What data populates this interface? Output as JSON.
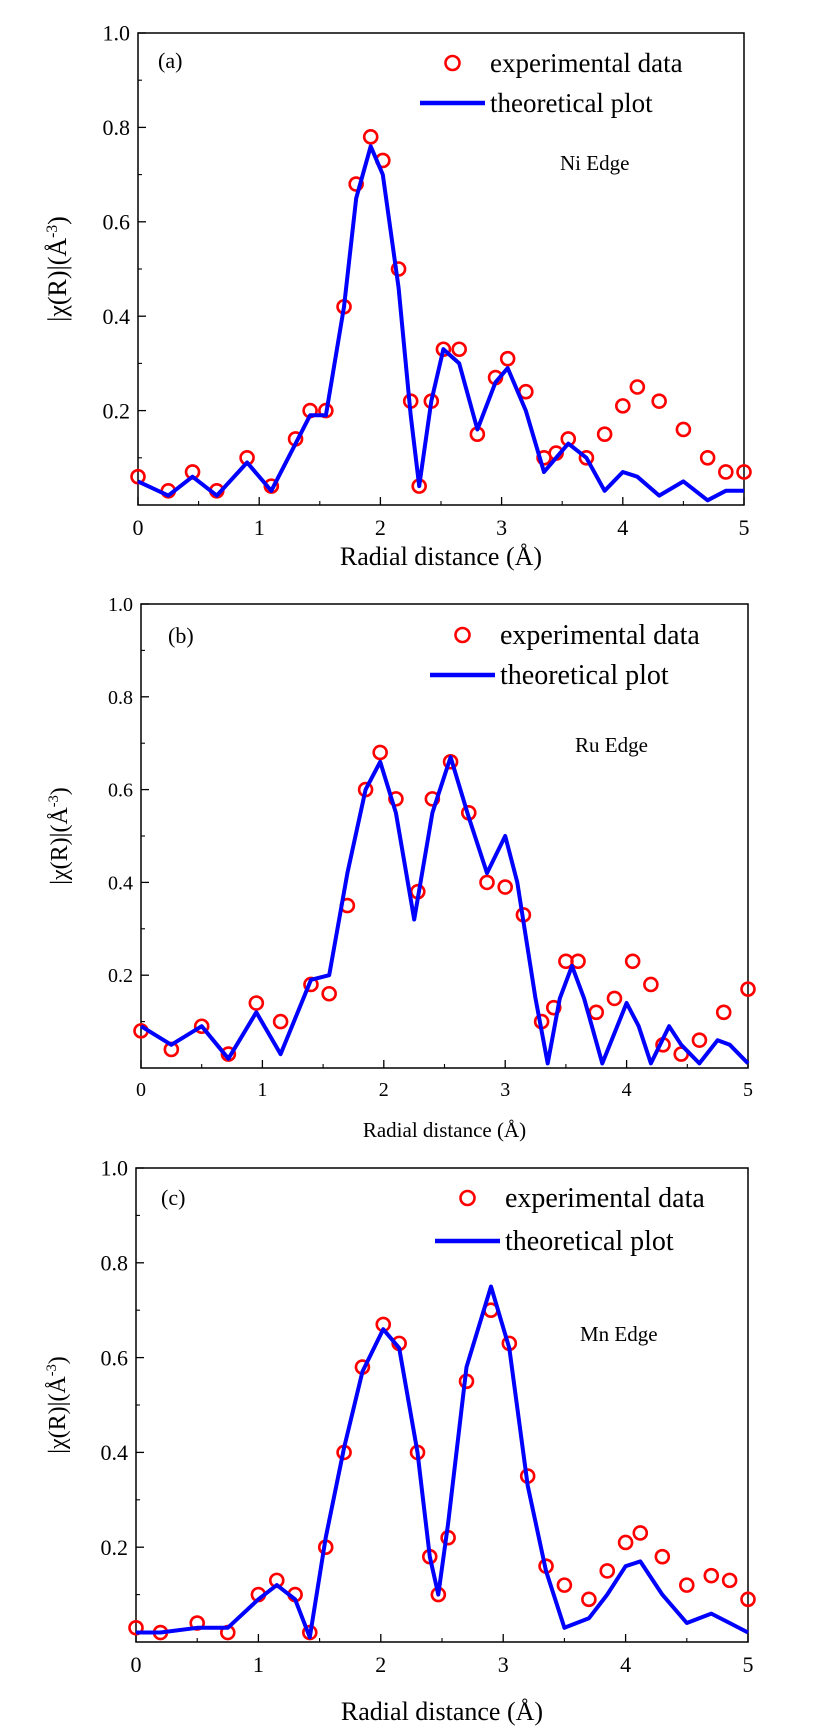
{
  "chart_data": [
    {
      "type": "scatter",
      "panel_label": "(a)",
      "annotation": "Ni Edge",
      "xlabel": "Radial distance (Å)",
      "ylabel": "|χ(R)|(Å",
      "ylabel_sup": "-3",
      "ylabel_close": ")",
      "xlim": [
        0,
        5
      ],
      "ylim": [
        0,
        1.0
      ],
      "xticks": [
        "0",
        "1",
        "2",
        "3",
        "4",
        "5"
      ],
      "yticks": [
        "0.2",
        "0.4",
        "0.6",
        "0.8",
        "1.0"
      ],
      "legend_position": "top-right",
      "series": [
        {
          "name": "experimental data",
          "style": "circles",
          "color": "#ff0000",
          "x": [
            0.0,
            0.25,
            0.45,
            0.65,
            0.9,
            1.1,
            1.3,
            1.42,
            1.55,
            1.7,
            1.8,
            1.92,
            2.02,
            2.15,
            2.25,
            2.32,
            2.42,
            2.52,
            2.65,
            2.8,
            2.95,
            3.05,
            3.2,
            3.35,
            3.45,
            3.55,
            3.7,
            3.85,
            4.0,
            4.12,
            4.3,
            4.5,
            4.7,
            4.85,
            5.0
          ],
          "y": [
            0.06,
            0.03,
            0.07,
            0.03,
            0.1,
            0.04,
            0.14,
            0.2,
            0.2,
            0.42,
            0.68,
            0.78,
            0.73,
            0.5,
            0.22,
            0.04,
            0.22,
            0.33,
            0.33,
            0.15,
            0.27,
            0.31,
            0.24,
            0.1,
            0.11,
            0.14,
            0.1,
            0.15,
            0.21,
            0.25,
            0.22,
            0.16,
            0.1,
            0.07,
            0.07
          ]
        },
        {
          "name": "theoretical plot",
          "style": "line",
          "color": "#0000ff",
          "x": [
            0.0,
            0.25,
            0.45,
            0.65,
            0.9,
            1.1,
            1.3,
            1.42,
            1.55,
            1.7,
            1.8,
            1.92,
            2.02,
            2.15,
            2.25,
            2.32,
            2.42,
            2.52,
            2.65,
            2.8,
            2.95,
            3.05,
            3.2,
            3.35,
            3.45,
            3.55,
            3.7,
            3.85,
            4.0,
            4.12,
            4.3,
            4.5,
            4.7,
            4.85,
            5.0
          ],
          "y": [
            0.05,
            0.02,
            0.06,
            0.02,
            0.09,
            0.03,
            0.13,
            0.19,
            0.19,
            0.42,
            0.65,
            0.76,
            0.7,
            0.46,
            0.19,
            0.04,
            0.22,
            0.33,
            0.3,
            0.16,
            0.26,
            0.29,
            0.2,
            0.07,
            0.1,
            0.13,
            0.1,
            0.03,
            0.07,
            0.06,
            0.02,
            0.05,
            0.01,
            0.03,
            0.03
          ]
        }
      ]
    },
    {
      "type": "scatter",
      "panel_label": "(b)",
      "annotation": "Ru Edge",
      "xlabel": "Radial distance (Å)",
      "ylabel": "|χ(R)|(Å",
      "ylabel_sup": "-3",
      "ylabel_close": ")",
      "xlim": [
        0,
        5
      ],
      "ylim": [
        0,
        1.0
      ],
      "xticks": [
        "0",
        "1",
        "2",
        "3",
        "4",
        "5"
      ],
      "yticks": [
        "0.2",
        "0.4",
        "0.6",
        "0.8",
        "1.0"
      ],
      "legend_position": "top-right",
      "series": [
        {
          "name": "experimental data",
          "style": "circles",
          "color": "#ff0000",
          "x": [
            0.0,
            0.25,
            0.5,
            0.72,
            0.95,
            1.15,
            1.4,
            1.55,
            1.7,
            1.85,
            1.97,
            2.1,
            2.28,
            2.4,
            2.55,
            2.7,
            2.85,
            3.0,
            3.15,
            3.3,
            3.4,
            3.5,
            3.6,
            3.75,
            3.9,
            4.05,
            4.2,
            4.3,
            4.45,
            4.6,
            4.8,
            5.0
          ],
          "y": [
            0.08,
            0.04,
            0.09,
            0.03,
            0.14,
            0.1,
            0.18,
            0.16,
            0.35,
            0.6,
            0.68,
            0.58,
            0.38,
            0.58,
            0.66,
            0.55,
            0.4,
            0.39,
            0.33,
            0.1,
            0.13,
            0.23,
            0.23,
            0.12,
            0.15,
            0.23,
            0.18,
            0.05,
            0.03,
            0.06,
            0.12,
            0.17
          ]
        },
        {
          "name": "theoretical plot",
          "style": "line",
          "color": "#0000ff",
          "x": [
            0.0,
            0.25,
            0.5,
            0.72,
            0.95,
            1.15,
            1.4,
            1.55,
            1.7,
            1.85,
            1.97,
            2.1,
            2.25,
            2.4,
            2.55,
            2.7,
            2.85,
            3.0,
            3.1,
            3.25,
            3.35,
            3.45,
            3.55,
            3.65,
            3.8,
            4.0,
            4.1,
            4.2,
            4.35,
            4.45,
            4.6,
            4.75,
            4.85,
            5.0
          ],
          "y": [
            0.09,
            0.05,
            0.09,
            0.02,
            0.12,
            0.03,
            0.19,
            0.2,
            0.42,
            0.6,
            0.66,
            0.55,
            0.32,
            0.55,
            0.67,
            0.54,
            0.42,
            0.5,
            0.4,
            0.15,
            0.01,
            0.15,
            0.22,
            0.15,
            0.01,
            0.14,
            0.09,
            0.01,
            0.09,
            0.05,
            0.01,
            0.06,
            0.05,
            0.01
          ]
        }
      ]
    },
    {
      "type": "scatter",
      "panel_label": "(c)",
      "annotation": "Mn Edge",
      "xlabel": "Radial distance (Å)",
      "ylabel": "|χ(R)|(Å",
      "ylabel_sup": "-3",
      "ylabel_close": ")",
      "xlim": [
        0,
        5
      ],
      "ylim": [
        0,
        1.0
      ],
      "xticks": [
        "0",
        "1",
        "2",
        "3",
        "4",
        "5"
      ],
      "yticks": [
        "0.2",
        "0.4",
        "0.6",
        "0.8",
        "1.0"
      ],
      "legend_position": "top-right",
      "series": [
        {
          "name": "experimental data",
          "style": "circles",
          "color": "#ff0000",
          "x": [
            0.0,
            0.2,
            0.5,
            0.75,
            1.0,
            1.15,
            1.3,
            1.42,
            1.55,
            1.7,
            1.85,
            2.02,
            2.15,
            2.3,
            2.4,
            2.47,
            2.55,
            2.7,
            2.9,
            3.05,
            3.2,
            3.35,
            3.5,
            3.7,
            3.85,
            4.0,
            4.12,
            4.3,
            4.5,
            4.7,
            4.85,
            5.0
          ],
          "y": [
            0.03,
            0.02,
            0.04,
            0.02,
            0.1,
            0.13,
            0.1,
            0.02,
            0.2,
            0.4,
            0.58,
            0.67,
            0.63,
            0.4,
            0.18,
            0.1,
            0.22,
            0.55,
            0.7,
            0.63,
            0.35,
            0.16,
            0.12,
            0.09,
            0.15,
            0.21,
            0.23,
            0.18,
            0.12,
            0.14,
            0.13,
            0.09
          ]
        },
        {
          "name": "theoretical plot",
          "style": "line",
          "color": "#0000ff",
          "x": [
            0.0,
            0.2,
            0.5,
            0.75,
            1.0,
            1.15,
            1.3,
            1.42,
            1.55,
            1.7,
            1.85,
            2.02,
            2.15,
            2.3,
            2.4,
            2.47,
            2.55,
            2.7,
            2.9,
            3.05,
            3.2,
            3.35,
            3.5,
            3.7,
            3.85,
            4.0,
            4.12,
            4.3,
            4.5,
            4.7,
            4.85,
            5.0
          ],
          "y": [
            0.02,
            0.02,
            0.03,
            0.03,
            0.09,
            0.12,
            0.09,
            0.01,
            0.22,
            0.41,
            0.57,
            0.66,
            0.62,
            0.4,
            0.18,
            0.1,
            0.25,
            0.58,
            0.75,
            0.62,
            0.33,
            0.15,
            0.03,
            0.05,
            0.1,
            0.16,
            0.17,
            0.1,
            0.04,
            0.06,
            0.04,
            0.02
          ]
        }
      ]
    }
  ]
}
